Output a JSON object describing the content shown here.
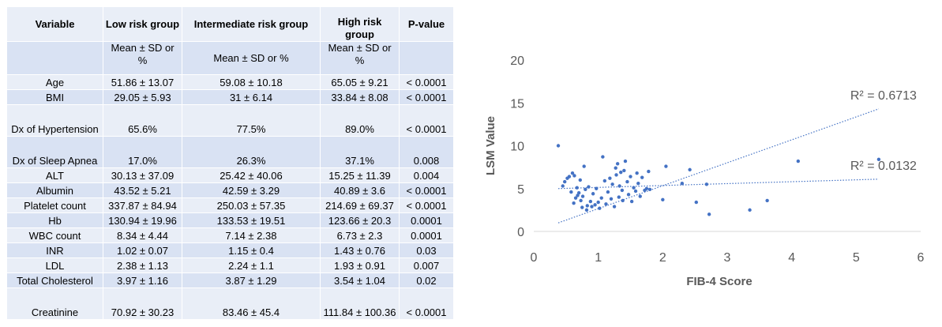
{
  "table": {
    "headers": [
      "Variable",
      "Low risk group",
      "Intermediate risk group",
      "High risk group",
      "P-value"
    ],
    "subheader": [
      "",
      "Mean ± SD or %",
      "Mean ± SD or %",
      "Mean ± SD or %",
      ""
    ],
    "rows": [
      [
        "Age",
        "51.86 ± 13.07",
        "59.08 ± 10.18",
        "65.05 ± 9.21",
        "< 0.0001"
      ],
      [
        "BMI",
        "29.05 ± 5.93",
        "31 ± 6.14",
        "33.84 ± 8.08",
        "< 0.0001"
      ],
      [
        "Dx of Hypertension",
        "65.6%",
        "77.5%",
        "89.0%",
        "< 0.0001"
      ],
      [
        "Dx of Sleep Apnea",
        "17.0%",
        "26.3%",
        "37.1%",
        "0.008"
      ],
      [
        "ALT",
        "30.13 ± 37.09",
        "25.42 ± 40.06",
        "15.25 ± 11.39",
        "0.004"
      ],
      [
        "Albumin",
        "43.52 ± 5.21",
        "42.59 ± 3.29",
        "40.89 ± 3.6",
        "< 0.0001"
      ],
      [
        "Platelet count",
        "337.87 ± 84.94",
        "250.03 ± 57.35",
        "214.69 ± 69.37",
        "< 0.0001"
      ],
      [
        "Hb",
        "130.94 ± 19.96",
        "133.53 ± 19.51",
        "123.66 ± 20.3",
        "0.0001"
      ],
      [
        "WBC count",
        "8.34 ± 4.44",
        "7.14 ± 2.38",
        "6.73 ± 2.3",
        "0.0001"
      ],
      [
        "INR",
        "1.02 ± 0.07",
        "1.15 ± 0.4",
        "1.43 ± 0.76",
        "0.03"
      ],
      [
        "LDL",
        "2.38 ± 1.13",
        "2.24 ± 1.1",
        "1.93 ± 0.91",
        "0.007"
      ],
      [
        "Total Cholesterol",
        "3.97 ± 1.16",
        "3.87 ± 1.29",
        "3.54 ± 1.04",
        "0.02"
      ],
      [
        "Creatinine",
        "70.92 ± 30.23",
        "83.46 ± 45.4",
        "111.84 ± 100.36",
        "< 0.0001"
      ]
    ]
  },
  "chart_data": {
    "type": "scatter",
    "xlabel": "FIB-4 Score",
    "ylabel": "LSM  Value",
    "xlim": [
      0,
      6
    ],
    "ylim": [
      0,
      20
    ],
    "xticks": [
      "0",
      "1",
      "2",
      "3",
      "4",
      "5",
      "6"
    ],
    "yticks": [
      "0",
      "5",
      "10",
      "15",
      "20"
    ],
    "grid": false,
    "color": "#4472c4",
    "trendlines": [
      {
        "label": "R² = 0.6713",
        "x": [
          0.38,
          5.35
        ],
        "y": [
          1.0,
          14.3
        ]
      },
      {
        "label": "R² = 0.0132",
        "x": [
          0.38,
          5.35
        ],
        "y": [
          5.0,
          6.1
        ]
      }
    ],
    "points": [
      [
        0.38,
        10.0
      ],
      [
        0.45,
        5.3
      ],
      [
        0.48,
        5.8
      ],
      [
        0.52,
        6.2
      ],
      [
        0.55,
        6.4
      ],
      [
        0.58,
        4.6
      ],
      [
        0.6,
        6.8
      ],
      [
        0.62,
        3.3
      ],
      [
        0.63,
        6.5
      ],
      [
        0.65,
        3.9
      ],
      [
        0.67,
        5.1
      ],
      [
        0.68,
        4.2
      ],
      [
        0.7,
        4.5
      ],
      [
        0.72,
        6.0
      ],
      [
        0.73,
        3.6
      ],
      [
        0.75,
        2.8
      ],
      [
        0.76,
        4.1
      ],
      [
        0.78,
        7.6
      ],
      [
        0.8,
        4.9
      ],
      [
        0.82,
        2.5
      ],
      [
        0.83,
        3.0
      ],
      [
        0.85,
        5.2
      ],
      [
        0.88,
        3.5
      ],
      [
        0.9,
        2.9
      ],
      [
        0.92,
        4.4
      ],
      [
        0.95,
        3.1
      ],
      [
        0.97,
        5.0
      ],
      [
        1.0,
        3.4
      ],
      [
        1.02,
        2.7
      ],
      [
        1.05,
        3.9
      ],
      [
        1.07,
        8.7
      ],
      [
        1.1,
        5.9
      ],
      [
        1.12,
        3.2
      ],
      [
        1.15,
        4.6
      ],
      [
        1.18,
        6.2
      ],
      [
        1.2,
        3.8
      ],
      [
        1.22,
        5.5
      ],
      [
        1.25,
        2.9
      ],
      [
        1.27,
        7.4
      ],
      [
        1.28,
        6.6
      ],
      [
        1.3,
        7.9
      ],
      [
        1.32,
        4.0
      ],
      [
        1.33,
        5.3
      ],
      [
        1.35,
        6.9
      ],
      [
        1.37,
        4.8
      ],
      [
        1.38,
        3.6
      ],
      [
        1.4,
        7.1
      ],
      [
        1.42,
        8.2
      ],
      [
        1.45,
        5.8
      ],
      [
        1.47,
        4.3
      ],
      [
        1.5,
        6.4
      ],
      [
        1.52,
        3.5
      ],
      [
        1.55,
        5.1
      ],
      [
        1.58,
        4.7
      ],
      [
        1.6,
        6.8
      ],
      [
        1.62,
        5.6
      ],
      [
        1.65,
        4.1
      ],
      [
        1.68,
        6.3
      ],
      [
        1.72,
        4.8
      ],
      [
        1.75,
        5.0
      ],
      [
        1.78,
        7.0
      ],
      [
        1.8,
        4.9
      ],
      [
        2.0,
        3.7
      ],
      [
        2.05,
        7.6
      ],
      [
        2.3,
        5.6
      ],
      [
        2.42,
        7.2
      ],
      [
        2.52,
        3.4
      ],
      [
        2.68,
        5.5
      ],
      [
        2.72,
        2.0
      ],
      [
        3.35,
        2.5
      ],
      [
        3.62,
        3.6
      ],
      [
        4.1,
        8.2
      ],
      [
        5.35,
        8.4
      ]
    ]
  }
}
